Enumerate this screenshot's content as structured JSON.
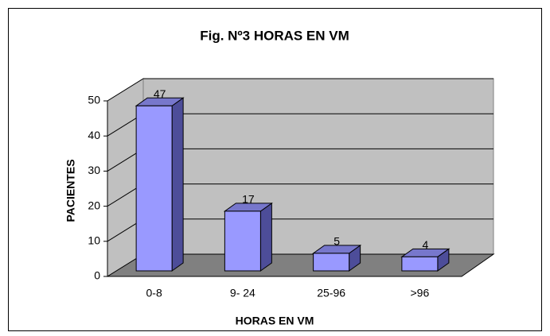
{
  "chart_data": {
    "type": "bar3d",
    "title": "Fig. Nº3 HORAS EN VM",
    "categories": [
      "0-8",
      "9- 24",
      "25-96",
      ">96"
    ],
    "values": [
      47,
      17,
      5,
      4
    ],
    "color": "#9999ff",
    "xlabel": "HORAS EN VM",
    "ylabel": "PACIENTES",
    "ylim": [
      0,
      50
    ],
    "yticks": [
      0,
      10,
      20,
      30,
      40,
      50
    ],
    "grid": true
  }
}
